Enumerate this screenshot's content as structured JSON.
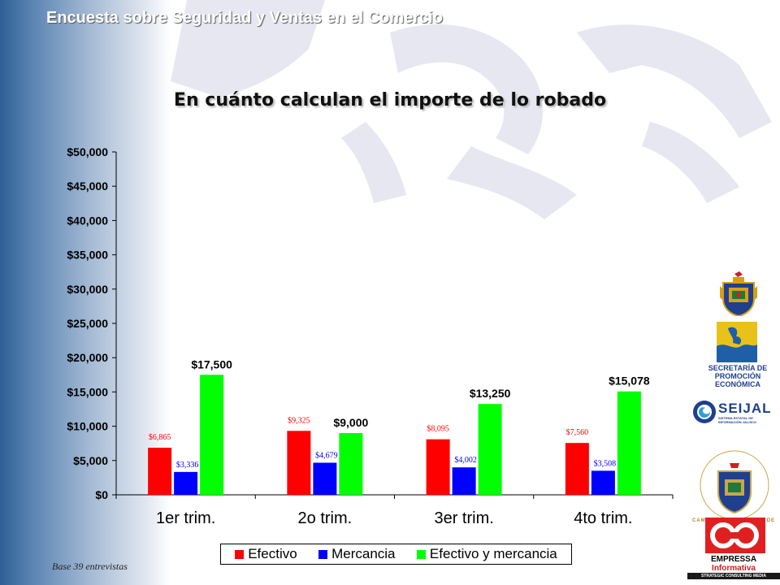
{
  "header": {
    "title": "Encuesta sobre Seguridad y Ventas en el Comercio"
  },
  "slide_title": "En cuánto calculan el importe de lo robado",
  "footnote": "Base 39 entrevistas",
  "colors": {
    "efectivo": "#ff0000",
    "mercancia": "#0000ff",
    "efectivo_y_mercancia": "#00ff00"
  },
  "chart_data": {
    "type": "bar",
    "categories": [
      "1er trim.",
      "2o trim.",
      "3er trim.",
      "4to trim."
    ],
    "series": [
      {
        "name": "Efectivo",
        "color": "#ff0000",
        "values": [
          6865,
          9325,
          8095,
          7560
        ],
        "labels": [
          "$6,865",
          "$9,325",
          "$8,095",
          "$7,560"
        ]
      },
      {
        "name": "Mercancia",
        "color": "#0000ff",
        "values": [
          3336,
          4679,
          4002,
          3508
        ],
        "labels": [
          "$3,336",
          "$4,679",
          "$4,002",
          "$3,508"
        ]
      },
      {
        "name": "Efectivo y mercancia",
        "color": "#00ff00",
        "values": [
          17500,
          9000,
          13250,
          15078
        ],
        "labels": [
          "$17,500",
          "$9,000",
          "$13,250",
          "$15,078"
        ]
      }
    ],
    "yticks": [
      "$0",
      "$5,000",
      "$10,000",
      "$15,000",
      "$20,000",
      "$25,000",
      "$30,000",
      "$35,000",
      "$40,000",
      "$45,000",
      "$50,000"
    ],
    "ylim": [
      0,
      50000
    ],
    "legend_position": "bottom",
    "grid": false
  },
  "logos": {
    "secretaria": [
      "SECRETARÍA DE",
      "PROMOCIÓN",
      "ECONÓMICA"
    ],
    "seijal": "SEIJAL",
    "seijal_sub": "SISTEMA ESTATAL DE INFORMACIÓN JALISCO",
    "camara": "CAMARA DE COMERCIO DE GUADALAJARA",
    "empressa": [
      "EMPRESSA",
      "Informativa"
    ],
    "empressa_sub": "STRATEGIC CONSULTING MEDIA"
  }
}
